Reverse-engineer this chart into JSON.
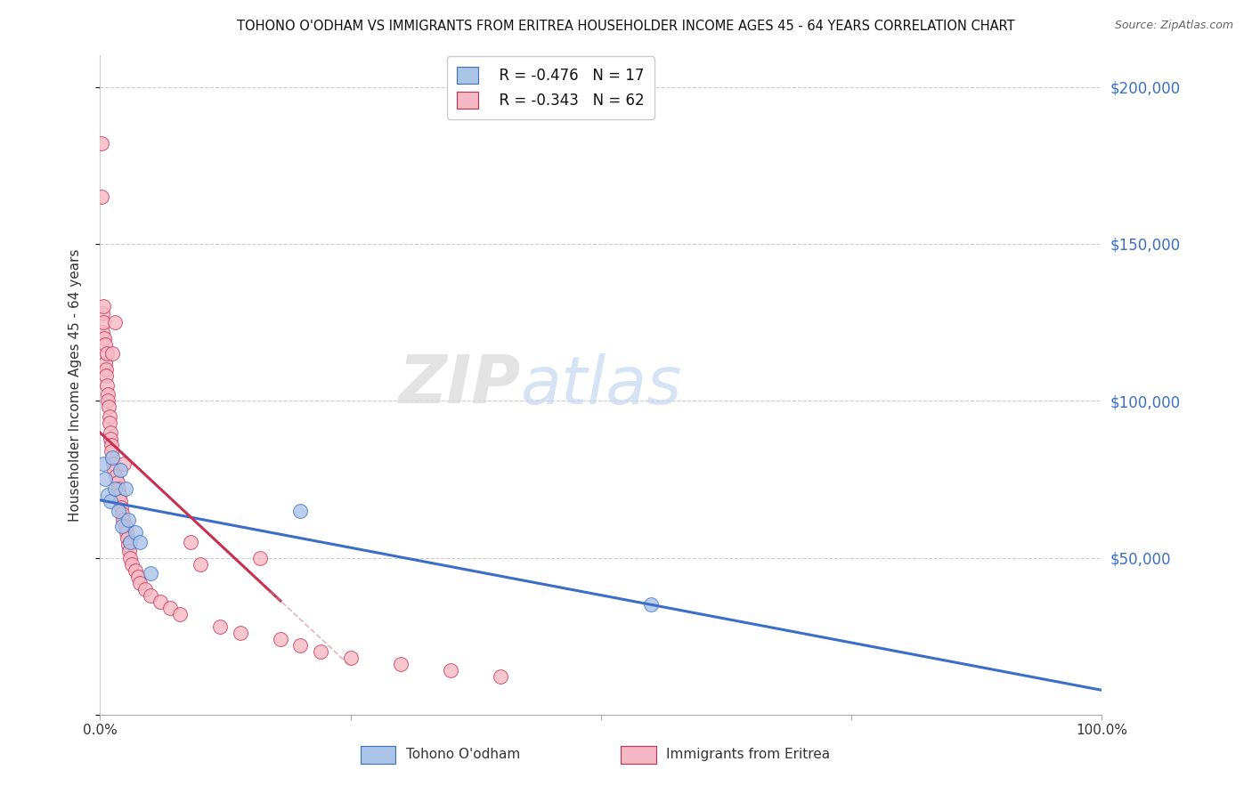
{
  "title": "TOHONO O'ODHAM VS IMMIGRANTS FROM ERITREA HOUSEHOLDER INCOME AGES 45 - 64 YEARS CORRELATION CHART",
  "source": "Source: ZipAtlas.com",
  "ylabel": "Householder Income Ages 45 - 64 years",
  "watermark_zip": "ZIP",
  "watermark_atlas": "atlas",
  "legend_1_label_r": "R = -0.476",
  "legend_1_label_n": "N = 17",
  "legend_2_label_r": "R = -0.343",
  "legend_2_label_n": "N = 62",
  "scatter_blue_color": "#aac4e8",
  "scatter_pink_color": "#f5b8c4",
  "line_blue_color": "#3a6ec8",
  "line_pink_color": "#c83050",
  "line_pink_dash_color": "#d08090",
  "grid_color": "#cccccc",
  "background_color": "#ffffff",
  "right_ytick_color": "#3a6ec8",
  "tohono_x": [
    0.3,
    0.5,
    0.8,
    1.0,
    1.2,
    1.5,
    1.8,
    2.0,
    2.2,
    2.5,
    2.8,
    3.0,
    3.5,
    4.0,
    5.0,
    20.0,
    55.0
  ],
  "tohono_y": [
    80000,
    75000,
    70000,
    68000,
    82000,
    72000,
    65000,
    78000,
    60000,
    72000,
    62000,
    55000,
    58000,
    55000,
    45000,
    65000,
    35000
  ],
  "eritrea_x": [
    0.1,
    0.15,
    0.2,
    0.25,
    0.3,
    0.35,
    0.4,
    0.45,
    0.5,
    0.55,
    0.6,
    0.65,
    0.7,
    0.75,
    0.8,
    0.85,
    0.9,
    0.95,
    1.0,
    1.05,
    1.1,
    1.15,
    1.2,
    1.3,
    1.4,
    1.5,
    1.6,
    1.7,
    1.8,
    1.9,
    2.0,
    2.1,
    2.2,
    2.3,
    2.4,
    2.5,
    2.6,
    2.7,
    2.8,
    2.9,
    3.0,
    3.2,
    3.5,
    3.8,
    4.0,
    4.5,
    5.0,
    6.0,
    7.0,
    8.0,
    9.0,
    10.0,
    12.0,
    14.0,
    16.0,
    18.0,
    20.0,
    22.0,
    25.0,
    30.0,
    35.0,
    40.0
  ],
  "eritrea_y": [
    182000,
    165000,
    128000,
    122000,
    130000,
    125000,
    120000,
    118000,
    112000,
    110000,
    108000,
    115000,
    105000,
    102000,
    100000,
    98000,
    95000,
    93000,
    90000,
    88000,
    86000,
    84000,
    115000,
    80000,
    78000,
    125000,
    76000,
    74000,
    72000,
    70000,
    68000,
    66000,
    64000,
    62000,
    80000,
    60000,
    58000,
    56000,
    54000,
    52000,
    50000,
    48000,
    46000,
    44000,
    42000,
    40000,
    38000,
    36000,
    34000,
    32000,
    55000,
    48000,
    28000,
    26000,
    50000,
    24000,
    22000,
    20000,
    18000,
    16000,
    14000,
    12000
  ],
  "ylim": [
    0,
    210000
  ],
  "xlim": [
    0,
    100
  ],
  "yticks": [
    0,
    50000,
    100000,
    150000,
    200000
  ],
  "ytick_labels_right": [
    "",
    "$50,000",
    "$100,000",
    "$150,000",
    "$200,000"
  ],
  "xticks": [
    0,
    25,
    50,
    75,
    100
  ],
  "xtick_labels": [
    "0.0%",
    "",
    "",
    "",
    "100.0%"
  ]
}
